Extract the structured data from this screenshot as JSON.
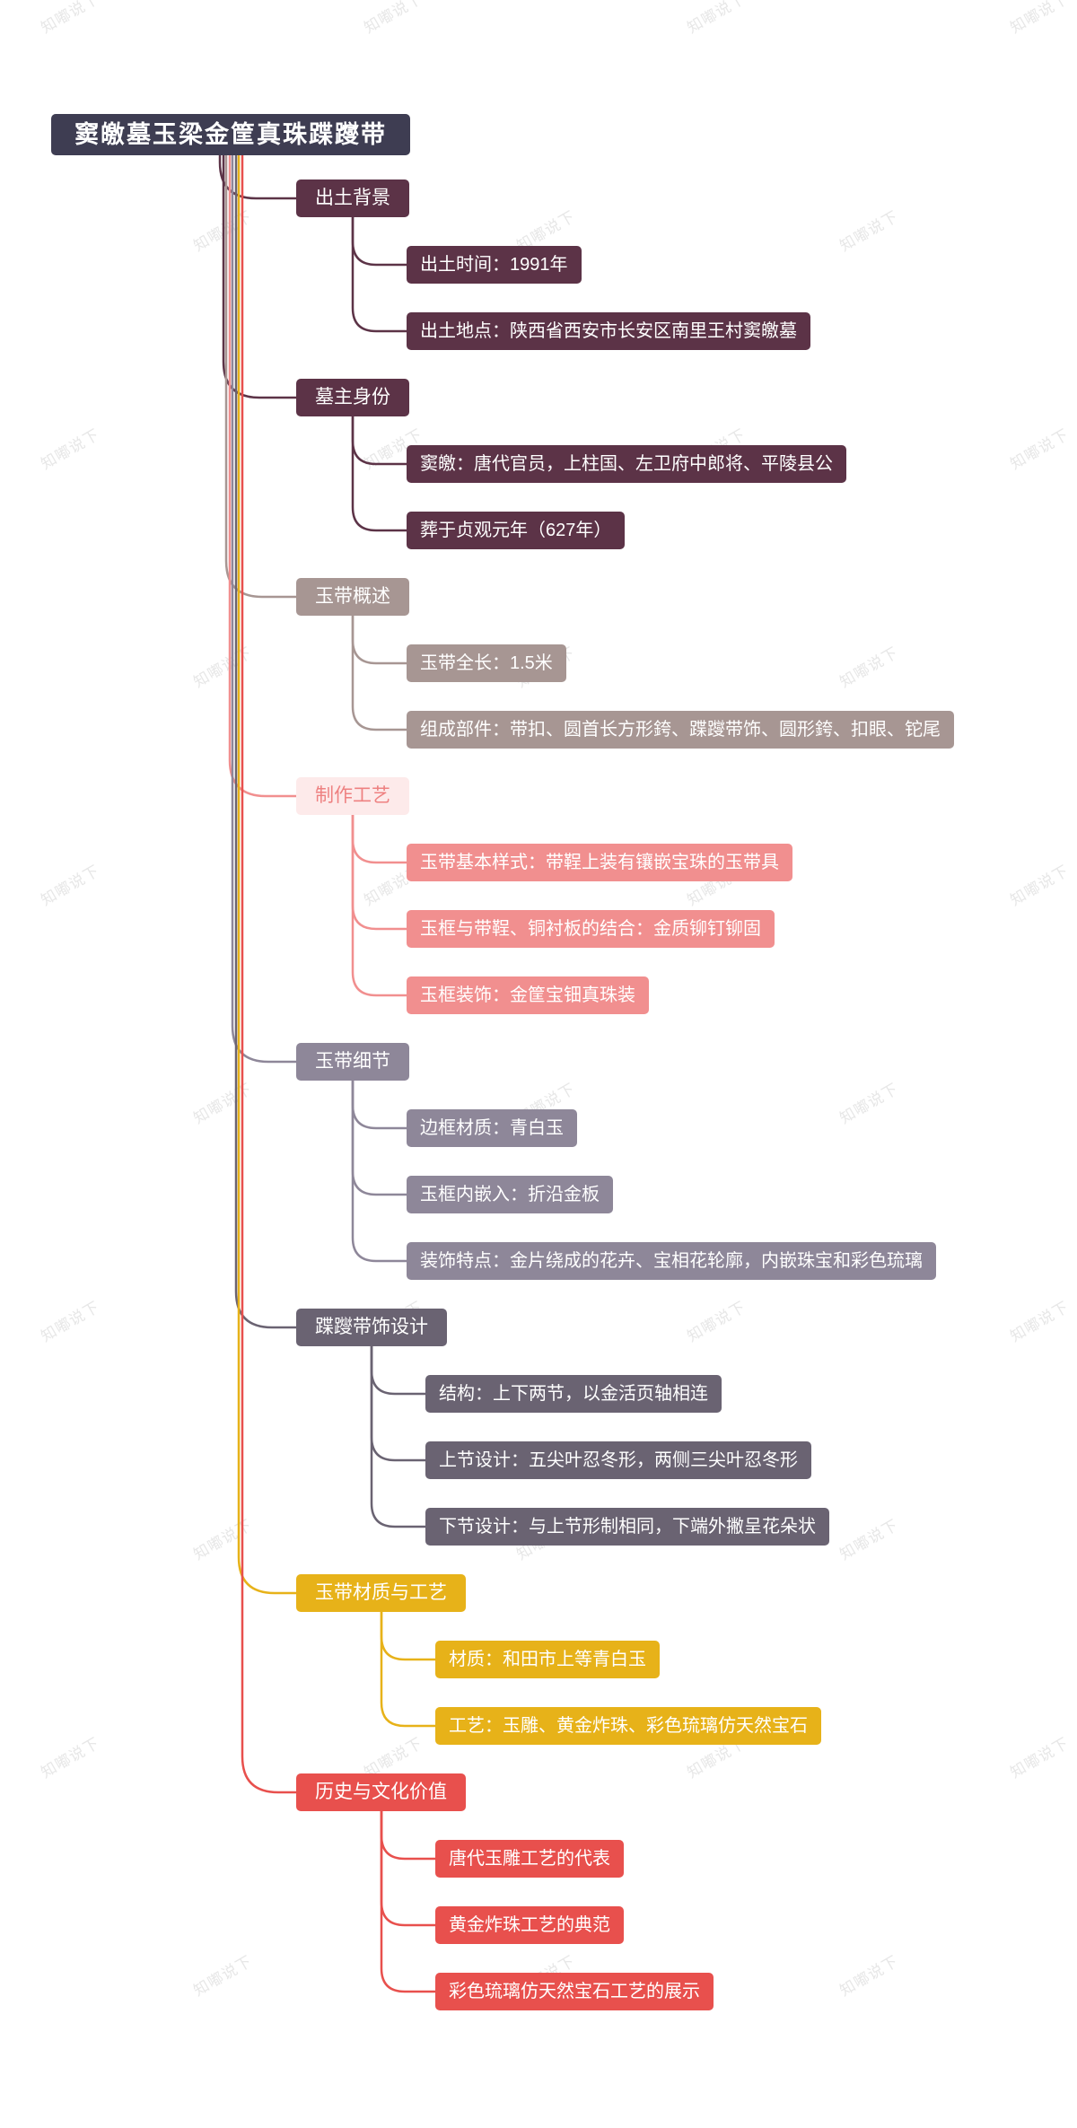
{
  "watermark": {
    "text": "知嘟说下",
    "color": "#e7e7e7"
  },
  "root": {
    "label": "窦皦墓玉梁金筐真珠蹀躞带",
    "bg": "#3e3d52",
    "text_color": "#ffffff"
  },
  "branches": [
    {
      "label": "出土背景",
      "color": "#5c3347",
      "header_bg": "#5c3347",
      "header_text": "#ffffff",
      "children": [
        "出土时间：1991年",
        "出土地点：陕西省西安市长安区南里王村窦皦墓"
      ]
    },
    {
      "label": "墓主身份",
      "color": "#5c3347",
      "header_bg": "#5c3347",
      "header_text": "#ffffff",
      "children": [
        "窦皦：唐代官员，上柱国、左卫府中郎将、平陵县公",
        "葬于贞观元年（627年）"
      ]
    },
    {
      "label": "玉带概述",
      "color": "#a79693",
      "header_bg": "#a79693",
      "header_text": "#ffffff",
      "children": [
        "玉带全长：1.5米",
        "组成部件：带扣、圆首长方形銙、蹀躞带饰、圆形銙、扣眼、铊尾"
      ]
    },
    {
      "label": "制作工艺",
      "color": "#f18f8f",
      "header_bg": "#fdeaea",
      "header_text": "#ee8181",
      "children": [
        "玉带基本样式：带鞓上装有镶嵌宝珠的玉带具",
        "玉框与带鞓、铜衬板的结合：金质铆钉铆固",
        "玉框装饰：金筐宝钿真珠装"
      ]
    },
    {
      "label": "玉带细节",
      "color": "#8e8799",
      "header_bg": "#8e8799",
      "header_text": "#ffffff",
      "children": [
        "边框材质：青白玉",
        "玉框内嵌入：折沿金板",
        "装饰特点：金片绕成的花卉、宝相花轮廓，内嵌珠宝和彩色琉璃"
      ]
    },
    {
      "label": "蹀躞带饰设计",
      "color": "#6a6372",
      "header_bg": "#6a6372",
      "header_text": "#ffffff",
      "children": [
        "结构：上下两节，以金活页轴相连",
        "上节设计：五尖叶忍冬形，两侧三尖叶忍冬形",
        "下节设计：与上节形制相同，下端外撇呈花朵状"
      ]
    },
    {
      "label": "玉带材质与工艺",
      "color": "#e7b219",
      "header_bg": "#e7b219",
      "header_text": "#ffffff",
      "children": [
        "材质：和田市上等青白玉",
        "工艺：玉雕、黄金炸珠、彩色琉璃仿天然宝石"
      ]
    },
    {
      "label": "历史与文化价值",
      "color": "#e8504d",
      "header_bg": "#e8504d",
      "header_text": "#ffffff",
      "children": [
        "唐代玉雕工艺的代表",
        "黄金炸珠工艺的典范",
        "彩色琉璃仿天然宝石工艺的展示"
      ]
    }
  ]
}
